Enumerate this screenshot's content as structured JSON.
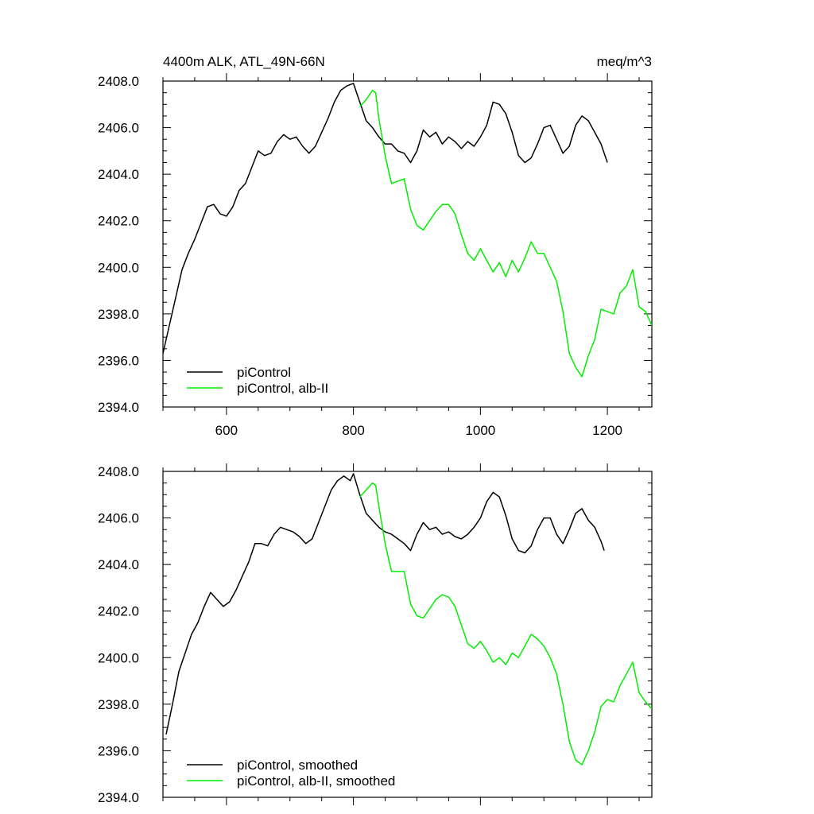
{
  "figure": {
    "title_left": "4400m ALK, ATL_49N-66N",
    "title_right": "meq/m^3"
  },
  "chart_data": [
    {
      "type": "line",
      "title": "4400m ALK, ATL_49N-66N",
      "units": "meq/m^3",
      "xlim": [
        500,
        1270
      ],
      "ylim": [
        2394,
        2408
      ],
      "x_ticks": [
        600,
        800,
        1000,
        1200
      ],
      "x_tick_labels": [
        "600",
        "800",
        "1000",
        "1200"
      ],
      "y_ticks": [
        2394,
        2396,
        2398,
        2400,
        2402,
        2404,
        2406,
        2408
      ],
      "y_tick_labels": [
        "2394.0",
        "2396.0",
        "2398.0",
        "2400.0",
        "2402.0",
        "2404.0",
        "2406.0",
        "2408.0"
      ],
      "legend_position": "bottom-left",
      "grid": false,
      "series": [
        {
          "name": "piControl",
          "color": "#000000",
          "x": [
            500,
            510,
            520,
            530,
            540,
            550,
            560,
            570,
            580,
            590,
            600,
            610,
            620,
            630,
            640,
            650,
            660,
            670,
            680,
            690,
            700,
            710,
            720,
            730,
            740,
            750,
            760,
            770,
            780,
            790,
            800,
            810,
            820,
            830,
            840,
            850,
            860,
            870,
            880,
            890,
            900,
            910,
            920,
            930,
            940,
            950,
            960,
            970,
            980,
            990,
            1000,
            1010,
            1020,
            1030,
            1040,
            1050,
            1060,
            1070,
            1080,
            1090,
            1100,
            1110,
            1120,
            1130,
            1140,
            1150,
            1160,
            1170,
            1180,
            1190,
            1200
          ],
          "y": [
            2396.3,
            2397.5,
            2398.7,
            2399.9,
            2400.6,
            2401.2,
            2401.9,
            2402.6,
            2402.7,
            2402.3,
            2402.2,
            2402.6,
            2403.3,
            2403.6,
            2404.3,
            2405.0,
            2404.8,
            2404.9,
            2405.4,
            2405.7,
            2405.5,
            2405.6,
            2405.2,
            2404.9,
            2405.2,
            2405.8,
            2406.4,
            2407.1,
            2407.6,
            2407.8,
            2407.9,
            2407.1,
            2406.3,
            2406.0,
            2405.6,
            2405.3,
            2405.3,
            2405.0,
            2404.9,
            2404.5,
            2405.0,
            2405.9,
            2405.6,
            2405.8,
            2405.3,
            2405.6,
            2405.4,
            2405.1,
            2405.4,
            2405.2,
            2405.6,
            2406.1,
            2407.1,
            2407.0,
            2406.6,
            2405.8,
            2404.8,
            2404.5,
            2404.7,
            2405.3,
            2406.0,
            2406.1,
            2405.5,
            2404.9,
            2405.2,
            2406.1,
            2406.5,
            2406.3,
            2405.8,
            2405.3,
            2404.5
          ]
        },
        {
          "name": "piControl, alb-II",
          "color": "#00ee00",
          "x": [
            810,
            820,
            830,
            835,
            840,
            850,
            860,
            870,
            880,
            890,
            900,
            910,
            920,
            930,
            940,
            950,
            960,
            970,
            980,
            990,
            1000,
            1010,
            1020,
            1030,
            1040,
            1050,
            1060,
            1070,
            1080,
            1090,
            1100,
            1110,
            1120,
            1130,
            1140,
            1150,
            1160,
            1170,
            1180,
            1190,
            1200,
            1210,
            1220,
            1230,
            1240,
            1250,
            1260,
            1270
          ],
          "y": [
            2406.9,
            2407.2,
            2407.6,
            2407.5,
            2406.4,
            2404.8,
            2403.6,
            2403.7,
            2403.8,
            2402.5,
            2401.8,
            2401.6,
            2402.0,
            2402.4,
            2402.7,
            2402.7,
            2402.3,
            2401.4,
            2400.6,
            2400.3,
            2400.8,
            2400.3,
            2399.8,
            2400.2,
            2399.6,
            2400.3,
            2399.8,
            2400.4,
            2401.1,
            2400.6,
            2400.6,
            2400.0,
            2399.4,
            2398.1,
            2396.3,
            2395.7,
            2395.3,
            2396.2,
            2396.9,
            2398.2,
            2398.1,
            2398.0,
            2398.9,
            2399.2,
            2399.9,
            2398.3,
            2398.1,
            2397.5
          ]
        }
      ]
    },
    {
      "type": "line",
      "title": "",
      "units": "",
      "xlim": [
        500,
        1270
      ],
      "ylim": [
        2394,
        2408
      ],
      "x_ticks": [
        600,
        800,
        1000,
        1200
      ],
      "x_tick_labels": [],
      "y_ticks": [
        2394,
        2396,
        2398,
        2400,
        2402,
        2404,
        2406,
        2408
      ],
      "y_tick_labels": [
        "2394.0",
        "2396.0",
        "2398.0",
        "2400.0",
        "2402.0",
        "2404.0",
        "2406.0",
        "2408.0"
      ],
      "legend_position": "bottom-left",
      "grid": false,
      "series": [
        {
          "name": "piControl, smoothed",
          "color": "#000000",
          "x": [
            505,
            515,
            525,
            535,
            545,
            555,
            565,
            575,
            585,
            595,
            605,
            615,
            625,
            635,
            645,
            655,
            665,
            675,
            685,
            695,
            705,
            715,
            725,
            735,
            745,
            755,
            765,
            775,
            785,
            795,
            800,
            810,
            820,
            830,
            840,
            850,
            860,
            870,
            880,
            890,
            900,
            910,
            920,
            930,
            940,
            950,
            960,
            970,
            980,
            990,
            1000,
            1010,
            1020,
            1030,
            1040,
            1050,
            1060,
            1070,
            1080,
            1090,
            1100,
            1110,
            1120,
            1130,
            1140,
            1150,
            1160,
            1170,
            1180,
            1190,
            1195
          ],
          "y": [
            2396.7,
            2398.0,
            2399.4,
            2400.2,
            2401.0,
            2401.5,
            2402.2,
            2402.8,
            2402.5,
            2402.2,
            2402.4,
            2402.9,
            2403.5,
            2404.1,
            2404.9,
            2404.9,
            2404.8,
            2405.3,
            2405.6,
            2405.5,
            2405.4,
            2405.2,
            2404.9,
            2405.1,
            2405.8,
            2406.5,
            2407.2,
            2407.6,
            2407.8,
            2407.6,
            2407.9,
            2407.0,
            2406.2,
            2405.9,
            2405.6,
            2405.4,
            2405.3,
            2405.1,
            2404.9,
            2404.6,
            2405.3,
            2405.8,
            2405.5,
            2405.6,
            2405.3,
            2405.4,
            2405.2,
            2405.1,
            2405.3,
            2405.6,
            2406.0,
            2406.7,
            2407.1,
            2406.9,
            2406.1,
            2405.1,
            2404.6,
            2404.5,
            2404.8,
            2405.5,
            2406.0,
            2406.0,
            2405.3,
            2404.9,
            2405.5,
            2406.2,
            2406.4,
            2405.9,
            2405.6,
            2405.0,
            2404.6
          ]
        },
        {
          "name": "piControl, alb-II, smoothed",
          "color": "#00ee00",
          "x": [
            810,
            820,
            830,
            835,
            840,
            850,
            860,
            870,
            880,
            890,
            900,
            910,
            920,
            930,
            940,
            950,
            960,
            970,
            980,
            990,
            1000,
            1010,
            1020,
            1030,
            1040,
            1050,
            1060,
            1070,
            1080,
            1090,
            1100,
            1110,
            1120,
            1130,
            1140,
            1150,
            1160,
            1170,
            1180,
            1190,
            1200,
            1210,
            1220,
            1230,
            1240,
            1250,
            1260,
            1270
          ],
          "y": [
            2406.9,
            2407.2,
            2407.5,
            2407.4,
            2406.5,
            2404.9,
            2403.7,
            2403.7,
            2403.7,
            2402.3,
            2401.8,
            2401.7,
            2402.1,
            2402.5,
            2402.7,
            2402.6,
            2402.2,
            2401.4,
            2400.6,
            2400.4,
            2400.7,
            2400.3,
            2399.8,
            2400.0,
            2399.7,
            2400.2,
            2400.0,
            2400.5,
            2401.0,
            2400.8,
            2400.5,
            2400.0,
            2399.3,
            2398.0,
            2396.4,
            2395.6,
            2395.4,
            2396.0,
            2396.8,
            2397.9,
            2398.2,
            2398.1,
            2398.8,
            2399.3,
            2399.8,
            2398.5,
            2398.1,
            2397.8
          ]
        }
      ]
    }
  ]
}
